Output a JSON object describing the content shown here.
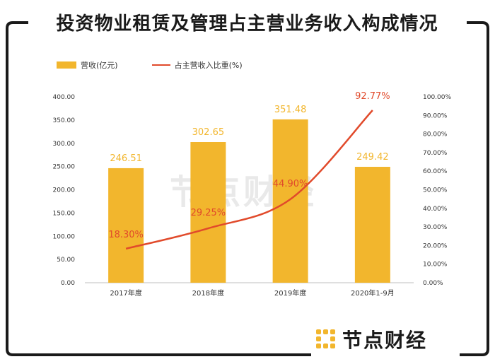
{
  "title": "投资物业租赁及管理占主营业务收入构成情况",
  "brand": {
    "name": "节点财经",
    "watermark": "节点财经",
    "color": "#F2B62D"
  },
  "chart_data": {
    "type": "bar",
    "categories": [
      "2017年度",
      "2018年度",
      "2019年度",
      "2020年1-9月"
    ],
    "series": [
      {
        "name": "营收(亿元)",
        "type": "bar",
        "axis": "left",
        "color": "#F2B62D",
        "values": [
          246.51,
          302.65,
          351.48,
          249.42
        ],
        "labels": [
          "246.51",
          "302.65",
          "351.48",
          "249.42"
        ]
      },
      {
        "name": "占主营收入比重(%)",
        "type": "line",
        "axis": "right",
        "color": "#E14A2B",
        "values": [
          18.3,
          29.25,
          44.9,
          92.77
        ],
        "labels": [
          "18.30%",
          "29.25%",
          "44.90%",
          "92.77%"
        ]
      }
    ],
    "y_left": {
      "ylim": [
        0,
        400
      ],
      "ticks": [
        "0.00",
        "50.00",
        "100.00",
        "150.00",
        "200.00",
        "250.00",
        "300.00",
        "350.00",
        "400.00"
      ]
    },
    "y_right": {
      "ylim": [
        0,
        100
      ],
      "ticks": [
        "0.00%",
        "10.00%",
        "20.00%",
        "30.00%",
        "40.00%",
        "50.00%",
        "60.00%",
        "70.00%",
        "80.00%",
        "90.00%",
        "100.00%"
      ]
    },
    "legend_position": "top-left",
    "grid": false
  }
}
